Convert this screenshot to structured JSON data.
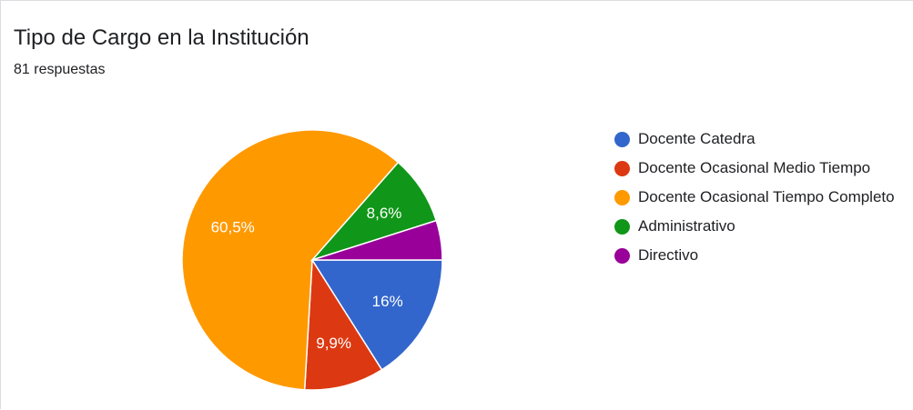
{
  "chart_data": {
    "type": "pie",
    "title": "Tipo de Cargo en la Institución",
    "subtitle": "81 respuestas",
    "slices": [
      {
        "label": "Docente Catedra",
        "value": 16.0,
        "display": "16%",
        "color": "#3366cc"
      },
      {
        "label": "Docente Ocasional Medio Tiempo",
        "value": 9.9,
        "display": "9,9%",
        "color": "#dc3912"
      },
      {
        "label": "Docente Ocasional Tiempo Completo",
        "value": 60.5,
        "display": "60,5%",
        "color": "#ff9900"
      },
      {
        "label": "Administrativo",
        "value": 8.6,
        "display": "8,6%",
        "color": "#109618"
      },
      {
        "label": "Directivo",
        "value": 4.9,
        "display": "",
        "color": "#990099"
      }
    ],
    "legend_position": "right"
  }
}
